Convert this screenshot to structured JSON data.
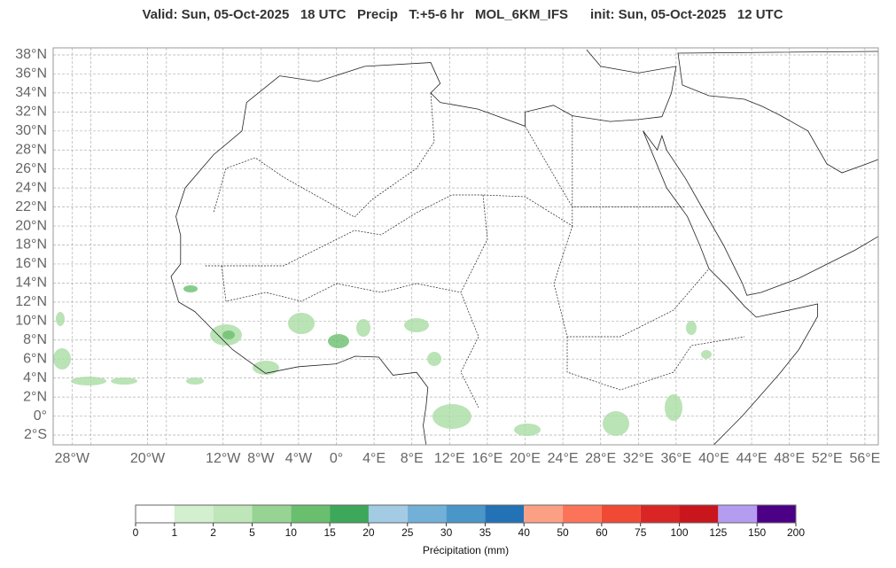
{
  "title": "Valid: Sun, 05-Oct-2025   18 UTC   Precip   T:+5-6 hr   MOL_6KM_IFS      init: Sun, 05-Oct-2025   12 UTC",
  "map": {
    "lat_ticks": [
      {
        "value": 38,
        "label": "38°N"
      },
      {
        "value": 36,
        "label": "36°N"
      },
      {
        "value": 34,
        "label": "34°N"
      },
      {
        "value": 32,
        "label": "32°N"
      },
      {
        "value": 30,
        "label": "30°N"
      },
      {
        "value": 28,
        "label": "28°N"
      },
      {
        "value": 26,
        "label": "26°N"
      },
      {
        "value": 24,
        "label": "24°N"
      },
      {
        "value": 22,
        "label": "22°N"
      },
      {
        "value": 20,
        "label": "20°N"
      },
      {
        "value": 18,
        "label": "18°N"
      },
      {
        "value": 16,
        "label": "16°N"
      },
      {
        "value": 14,
        "label": "14°N"
      },
      {
        "value": 12,
        "label": "12°N"
      },
      {
        "value": 10,
        "label": "10°N"
      },
      {
        "value": 8,
        "label": "8°N"
      },
      {
        "value": 6,
        "label": "6°N"
      },
      {
        "value": 4,
        "label": "4°N"
      },
      {
        "value": 2,
        "label": "2°N"
      },
      {
        "value": 0,
        "label": "0°"
      },
      {
        "value": -2,
        "label": "2°S"
      }
    ],
    "lon_ticks": [
      {
        "value": -28,
        "label": "28°W"
      },
      {
        "value": -20,
        "label": "20°W"
      },
      {
        "value": -12,
        "label": "12°W"
      },
      {
        "value": -8,
        "label": "8°W"
      },
      {
        "value": -4,
        "label": "4°W"
      },
      {
        "value": 0,
        "label": "0°"
      },
      {
        "value": 4,
        "label": "4°E"
      },
      {
        "value": 8,
        "label": "8°E"
      },
      {
        "value": 12,
        "label": "12°E"
      },
      {
        "value": 16,
        "label": "16°E"
      },
      {
        "value": 20,
        "label": "20°E"
      },
      {
        "value": 24,
        "label": "24°E"
      },
      {
        "value": 28,
        "label": "28°E"
      },
      {
        "value": 32,
        "label": "32°E"
      },
      {
        "value": 36,
        "label": "36°E"
      },
      {
        "value": 40,
        "label": "40°E"
      },
      {
        "value": 44,
        "label": "44°E"
      },
      {
        "value": 48,
        "label": "48°E"
      },
      {
        "value": 52,
        "label": "52°E"
      },
      {
        "value": 56,
        "label": "56°E"
      }
    ]
  },
  "colorbar": {
    "ticks": [
      0,
      1,
      2,
      5,
      10,
      15,
      20,
      25,
      30,
      35,
      40,
      50,
      60,
      75,
      100,
      125,
      150,
      200
    ],
    "colors": [
      "#ffffff",
      "#d3efcf",
      "#bfe6b8",
      "#97d494",
      "#6abf6e",
      "#3da75a",
      "#a3cbe4",
      "#72b0d8",
      "#4a96c8",
      "#2472b6",
      "#fca085",
      "#fb7358",
      "#f04a35",
      "#d92624",
      "#c8161c",
      "#b49cf0",
      "#4b0085"
    ],
    "label": "Précipitation (mm)"
  }
}
